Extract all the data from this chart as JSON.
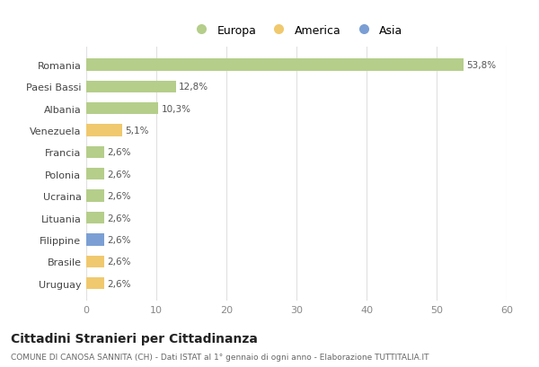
{
  "categories": [
    "Uruguay",
    "Brasile",
    "Filippine",
    "Lituania",
    "Ucraina",
    "Polonia",
    "Francia",
    "Venezuela",
    "Albania",
    "Paesi Bassi",
    "Romania"
  ],
  "values": [
    2.6,
    2.6,
    2.6,
    2.6,
    2.6,
    2.6,
    2.6,
    5.1,
    10.3,
    12.8,
    53.8
  ],
  "labels": [
    "2,6%",
    "2,6%",
    "2,6%",
    "2,6%",
    "2,6%",
    "2,6%",
    "2,6%",
    "5,1%",
    "10,3%",
    "12,8%",
    "53,8%"
  ],
  "colors": [
    "#f0c96e",
    "#f0c96e",
    "#7b9fd4",
    "#b5ce8a",
    "#b5ce8a",
    "#b5ce8a",
    "#b5ce8a",
    "#f0c96e",
    "#b5ce8a",
    "#b5ce8a",
    "#b5ce8a"
  ],
  "legend_labels": [
    "Europa",
    "America",
    "Asia"
  ],
  "legend_colors": [
    "#b5ce8a",
    "#f0c96e",
    "#7b9fd4"
  ],
  "xlim": [
    0,
    60
  ],
  "xticks": [
    0,
    10,
    20,
    30,
    40,
    50,
    60
  ],
  "title": "Cittadini Stranieri per Cittadinanza",
  "subtitle": "COMUNE DI CANOSA SANNITA (CH) - Dati ISTAT al 1° gennaio di ogni anno - Elaborazione TUTTITALIA.IT",
  "background_color": "#ffffff",
  "grid_color": "#e0e0e0"
}
